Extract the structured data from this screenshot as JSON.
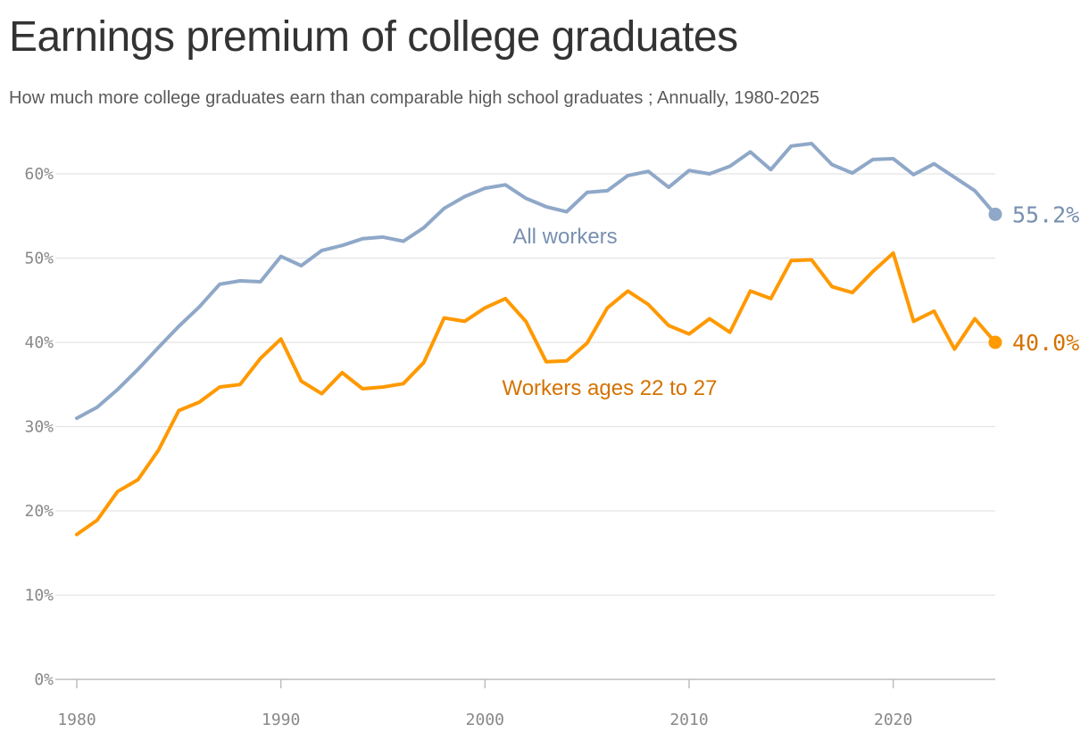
{
  "title": "Earnings premium of college graduates",
  "subtitle": "How much more college graduates earn than comparable high school graduates ; Annually, 1980-2025",
  "chart_data": {
    "type": "line",
    "title": "Earnings premium of college graduates",
    "subtitle": "How much more college graduates earn than comparable high school graduates ; Annually, 1980-2025",
    "xlabel": "",
    "ylabel": "",
    "xlim": [
      1980,
      2025
    ],
    "ylim": [
      0,
      60
    ],
    "grid": true,
    "x_ticks": [
      "1980",
      "1990",
      "2000",
      "2010",
      "2020"
    ],
    "y_ticks": [
      "0%",
      "10%",
      "20%",
      "30%",
      "40%",
      "50%",
      "60%"
    ],
    "x": [
      1980,
      1981,
      1982,
      1983,
      1984,
      1985,
      1986,
      1987,
      1988,
      1989,
      1990,
      1991,
      1992,
      1993,
      1994,
      1995,
      1996,
      1997,
      1998,
      1999,
      2000,
      2001,
      2002,
      2003,
      2004,
      2005,
      2006,
      2007,
      2008,
      2009,
      2010,
      2011,
      2012,
      2013,
      2014,
      2015,
      2016,
      2017,
      2018,
      2019,
      2020,
      2021,
      2022,
      2023,
      2024,
      2025
    ],
    "series": [
      {
        "name": "All workers",
        "color": "#8fa8c8",
        "label_color": "#7890b0",
        "end_label": "55.2%",
        "values": [
          31.0,
          32.3,
          34.4,
          36.8,
          39.4,
          41.9,
          44.2,
          46.9,
          47.3,
          47.2,
          50.2,
          49.1,
          50.9,
          51.5,
          52.3,
          52.5,
          52.0,
          53.6,
          55.9,
          57.3,
          58.3,
          58.7,
          57.1,
          56.1,
          55.5,
          57.8,
          58.0,
          59.8,
          60.3,
          58.4,
          60.4,
          60.0,
          60.9,
          62.6,
          60.5,
          63.3,
          63.6,
          61.1,
          60.1,
          61.7,
          61.8,
          59.9,
          61.2,
          59.6,
          58.0,
          55.2
        ]
      },
      {
        "name": "Workers ages 22 to 27",
        "color": "#ff9900",
        "label_color": "#d57200",
        "end_label": "40.0%",
        "values": [
          17.2,
          18.9,
          22.3,
          23.7,
          27.2,
          31.9,
          32.9,
          34.7,
          35.0,
          38.1,
          40.4,
          35.4,
          33.9,
          36.4,
          34.5,
          34.7,
          35.1,
          37.6,
          42.9,
          42.5,
          44.1,
          45.2,
          42.5,
          37.7,
          37.8,
          39.9,
          44.1,
          46.1,
          44.5,
          42.0,
          41.0,
          42.8,
          41.2,
          46.1,
          45.2,
          49.7,
          49.8,
          46.6,
          45.9,
          48.4,
          50.6,
          42.5,
          43.7,
          39.2,
          42.8,
          40.0
        ]
      }
    ]
  }
}
